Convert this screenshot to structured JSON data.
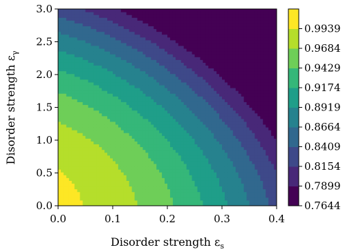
{
  "chart_data": {
    "type": "heatmap",
    "subtype": "filled-contour",
    "xlabel": "Disorder strength ε",
    "xlabel_sub": "s",
    "ylabel": "Disorder strength ε",
    "ylabel_sub": "γ",
    "xlim": [
      0.0,
      0.4
    ],
    "ylim": [
      0.0,
      3.0
    ],
    "xticks": [
      0.0,
      0.1,
      0.2,
      0.3,
      0.4
    ],
    "xtick_labels": [
      "0.0",
      "0.1",
      "0.2",
      "0.3",
      "0.4"
    ],
    "yticks": [
      0.0,
      0.5,
      1.0,
      1.5,
      2.0,
      2.5,
      3.0
    ],
    "ytick_labels": [
      "0.0",
      "0.5",
      "1.0",
      "1.5",
      "2.0",
      "2.5",
      "3.0"
    ],
    "colormap": "viridis",
    "colorbar_levels": [
      0.7644,
      0.7899,
      0.8154,
      0.8409,
      0.8664,
      0.8919,
      0.9174,
      0.9429,
      0.9684,
      0.9939
    ],
    "colorbar_labels": [
      "0.7644",
      "0.7899",
      "0.8154",
      "0.8409",
      "0.8664",
      "0.8919",
      "0.9174",
      "0.9429",
      "0.9684",
      "0.9939"
    ],
    "colors": [
      "#440154",
      "#482878",
      "#3e4989",
      "#31688e",
      "#26828e",
      "#1f9e89",
      "#35b779",
      "#6ece58",
      "#b5de2b",
      "#fde725"
    ],
    "grid": false,
    "z_model": {
      "form": "1 - a*x^2 - b*x - c*y^2 - d*x*y",
      "a": 0.8,
      "b": 0.1,
      "c": 0.019,
      "d": 0.06
    }
  }
}
